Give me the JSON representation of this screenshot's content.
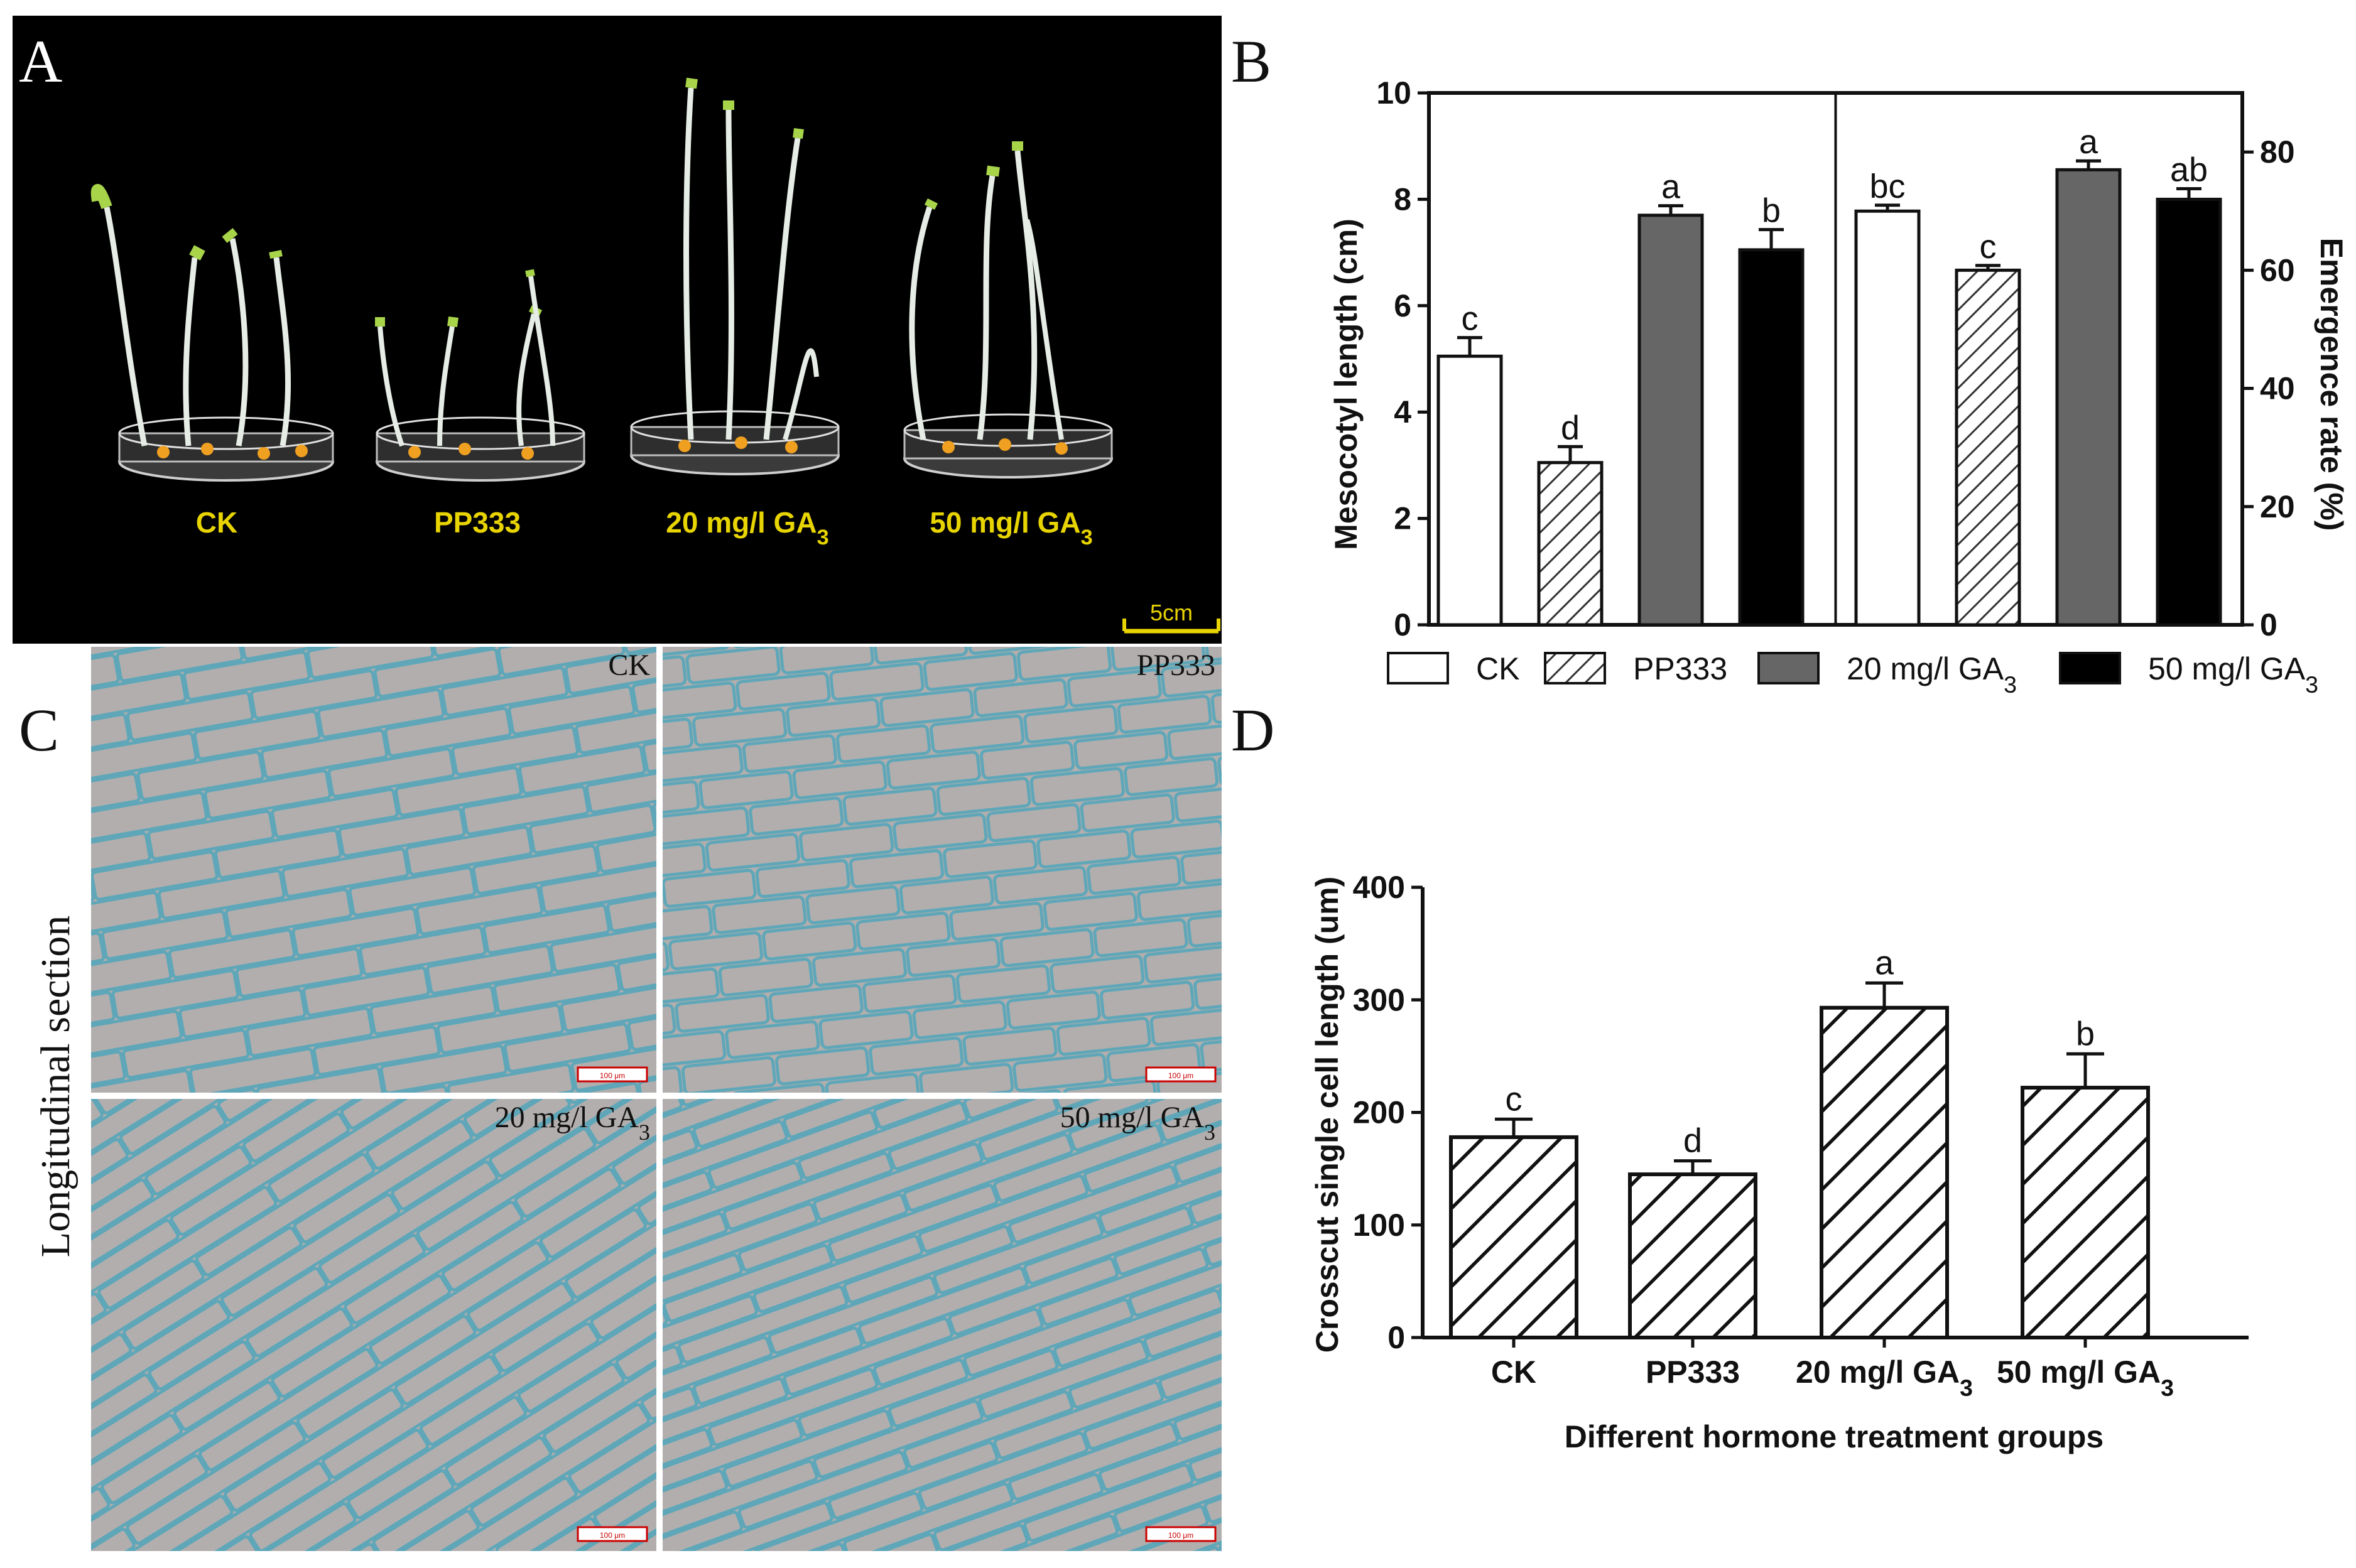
{
  "panels": {
    "a": {
      "letter": "A",
      "groups": [
        "CK",
        "PP333",
        "20 mg/l GA3",
        "50 mg/l GA3"
      ],
      "scale_bar": "5cm",
      "colors": {
        "background": "#000000",
        "label": "#e8d400",
        "seedling": "#a8d44a",
        "stem": "#e6ece6"
      }
    },
    "b": {
      "letter": "B",
      "left_axis_title": "Mesocotyl length (cm)",
      "right_axis_title": "Emergence rate (%)",
      "left_ticks": [
        "0",
        "2",
        "4",
        "6",
        "8",
        "10"
      ],
      "right_ticks": [
        "0",
        "20",
        "40",
        "60",
        "80"
      ],
      "legend": [
        "CK",
        "PP333",
        "20 mg/l GA3",
        "50 mg/l GA3"
      ]
    },
    "c": {
      "letter": "C",
      "side_label": "Longitudinal section",
      "tiles": [
        "CK",
        "PP333",
        "20 mg/l GA3",
        "50 mg/l GA3"
      ],
      "scale_text": "100 μm",
      "colors": {
        "tissue": "#b3aeae",
        "cell_wall": "#5fa7b8"
      }
    },
    "d": {
      "letter": "D",
      "y_title": "Crosscut single cell length (um)",
      "x_title": "Different hormone treatment groups",
      "y_ticks": [
        "0",
        "100",
        "200",
        "300",
        "400"
      ],
      "categories": [
        "CK",
        "PP333",
        "20 mg/l GA3",
        "50 mg/l GA3"
      ]
    }
  },
  "chart_data": [
    {
      "type": "bar",
      "panel": "B (left)",
      "categories": [
        "CK",
        "PP333",
        "20 mg/l GA3",
        "50 mg/l GA3"
      ],
      "values": [
        5.05,
        3.05,
        7.7,
        7.05
      ],
      "errors": [
        0.35,
        0.3,
        0.18,
        0.38
      ],
      "significance": [
        "c",
        "d",
        "a",
        "b"
      ],
      "ylabel": "Mesocotyl length (cm)",
      "ylim": [
        0,
        10
      ],
      "fills": [
        "white",
        "hatched",
        "#666666",
        "#000000"
      ]
    },
    {
      "type": "bar",
      "panel": "B (right)",
      "categories": [
        "CK",
        "PP333",
        "20 mg/l GA3",
        "50 mg/l GA3"
      ],
      "values": [
        70,
        60,
        77,
        72
      ],
      "errors": [
        1.0,
        0.8,
        1.5,
        1.8
      ],
      "significance": [
        "bc",
        "c",
        "a",
        "ab"
      ],
      "ylabel": "Emergence rate (%)",
      "ylim": [
        0,
        90
      ],
      "fills": [
        "white",
        "hatched",
        "#666666",
        "#000000"
      ]
    },
    {
      "type": "bar",
      "panel": "D",
      "categories": [
        "CK",
        "PP333",
        "20 mg/l GA3",
        "50 mg/l GA3"
      ],
      "values": [
        178,
        145,
        293,
        222
      ],
      "errors": [
        16,
        12,
        22,
        30
      ],
      "significance": [
        "c",
        "d",
        "a",
        "b"
      ],
      "ylabel": "Crosscut single cell length (um)",
      "xlabel": "Different hormone treatment groups",
      "ylim": [
        0,
        400
      ],
      "fills": [
        "hatched",
        "hatched",
        "hatched",
        "hatched"
      ]
    }
  ]
}
